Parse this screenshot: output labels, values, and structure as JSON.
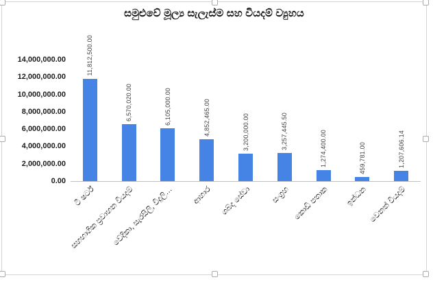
{
  "chart_data": {
    "type": "bar",
    "title": "සමුළුවේ මූල්‍ය සැලැස්ම සහ වියදම් ව්‍යුහය",
    "categories": [
      "ටී ෂර්ට්",
      "සහභාගික ප්‍රවාහන වියදම්",
      "වේදිකා, සැරසිලි, විදුලි…",
      "ආහාර",
      "ශබ්ද සේවා",
      "සංග්‍රහ",
      "කොඩි පතාක",
      "ඉන්ධන",
      "වෙනත් වියදම්"
    ],
    "values": [
      11812500,
      6570020,
      6105000,
      4852465,
      3200000,
      3257445.5,
      1274400,
      459781,
      1207606.14
    ],
    "value_labels": [
      "11,812,500.00",
      "6,570,020.00",
      "6,105,000.00",
      "4,852,465.00",
      "3,200,000.00",
      "3,257,445.50",
      "1,274,400.00",
      "459,781.00",
      "1,207,606.14"
    ],
    "y_ticks": [
      "14,000,000.00",
      "12,000,000.00",
      "10,000,000.00",
      "8,000,000.00",
      "6,000,000.00",
      "4,000,000.00",
      "2,000,000.00",
      "0.00"
    ],
    "ylim": [
      0,
      14000000
    ],
    "xlabel": "",
    "ylabel": "",
    "grid": false,
    "legend": "none",
    "bar_color": "#4584E4",
    "axis_line_color": "#C0C0C0"
  },
  "theme": {
    "frame_border_color": "#D4D4D4",
    "title_color": "#111111",
    "tick_label_color": "#1A1A1A",
    "value_label_color": "#3F3F3F",
    "background": "#FFFFFF"
  }
}
